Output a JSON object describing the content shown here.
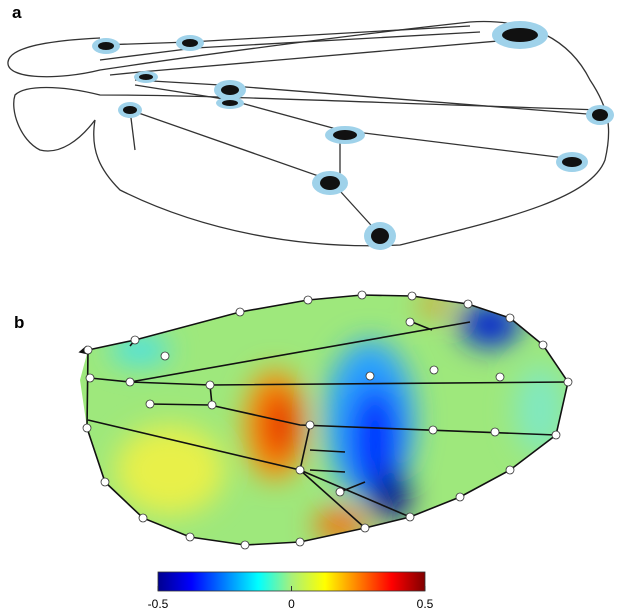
{
  "panels": {
    "a": "a",
    "b": "b"
  },
  "colorbar": {
    "lim": [
      -0.5,
      0.5
    ],
    "ticks": [
      -0.5,
      0,
      0.5
    ]
  }
}
